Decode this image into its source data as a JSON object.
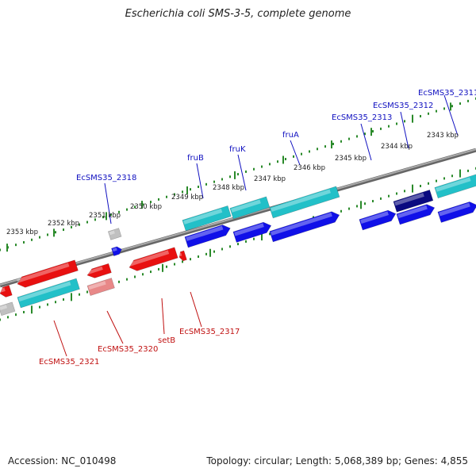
{
  "title": "Escherichia coli SMS-3-5, complete genome",
  "footer": {
    "accession": "Accession: NC_010498",
    "summary": "Topology: circular; Length: 5,068,389 bp; Genes: 4,855"
  },
  "colors": {
    "forward_gene": "#1010e8",
    "forward_gene_dark": "#0a0a80",
    "reverse_gene": "#e81010",
    "cds": "#22c0c8",
    "pseudo": "#c0c0c0",
    "tick": "#2a8a2a",
    "label_forward": "#1010c0",
    "label_reverse": "#c01010",
    "backbone": "#888888"
  },
  "chart_data": {
    "type": "genome-map-segment",
    "genome": "Escherichia coli SMS-3-5",
    "position_labels": [
      "2343 kbp",
      "2344 kbp",
      "2345 kbp",
      "2346 kbp",
      "2347 kbp",
      "2348 kbp",
      "2349 kbp",
      "2350 kbp",
      "2351 kbp",
      "2352 kbp",
      "2353 kbp"
    ],
    "forward_labels": [
      "EcSMS35_2311",
      "EcSMS35_2312",
      "EcSMS35_2313",
      "fruA",
      "fruK",
      "fruB",
      "EcSMS35_2318"
    ],
    "reverse_labels": [
      "EcSMS35_2317",
      "setB",
      "EcSMS35_2320",
      "EcSMS35_2321"
    ]
  }
}
